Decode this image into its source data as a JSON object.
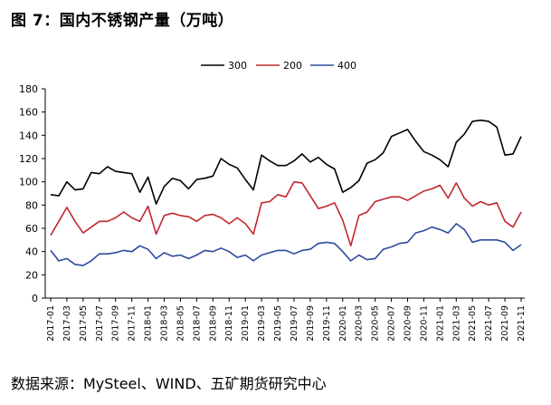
{
  "title": "图 7：国内不锈钢产量（万吨）",
  "source": "数据来源：MySteel、WIND、五矿期货研究中心",
  "chart_data": {
    "type": "line",
    "ylim": [
      0,
      180
    ],
    "yticks": [
      0,
      20,
      40,
      60,
      80,
      100,
      120,
      140,
      160,
      180
    ],
    "grid": false,
    "legend_position": "top",
    "x": [
      "2017-01",
      "2017-02",
      "2017-03",
      "2017-04",
      "2017-05",
      "2017-06",
      "2017-07",
      "2017-08",
      "2017-09",
      "2017-10",
      "2017-11",
      "2017-12",
      "2018-01",
      "2018-02",
      "2018-03",
      "2018-04",
      "2018-05",
      "2018-06",
      "2018-07",
      "2018-08",
      "2018-09",
      "2018-10",
      "2018-11",
      "2018-12",
      "2019-01",
      "2019-02",
      "2019-03",
      "2019-04",
      "2019-05",
      "2019-06",
      "2019-07",
      "2019-08",
      "2019-09",
      "2019-10",
      "2019-11",
      "2019-12",
      "2020-01",
      "2020-02",
      "2020-03",
      "2020-04",
      "2020-05",
      "2020-06",
      "2020-07",
      "2020-08",
      "2020-09",
      "2020-10",
      "2020-11",
      "2020-12",
      "2021-01",
      "2021-02",
      "2021-03",
      "2021-04",
      "2021-05",
      "2021-06",
      "2021-07",
      "2021-08",
      "2021-09",
      "2021-10",
      "2021-11"
    ],
    "xtick_labels": [
      "2017-01",
      "2017-03",
      "2017-05",
      "2017-07",
      "2017-09",
      "2017-11",
      "2018-01",
      "2018-03",
      "2018-05",
      "2018-07",
      "2018-09",
      "2018-11",
      "2019-01",
      "2019-03",
      "2019-05",
      "2019-07",
      "2019-09",
      "2019-11",
      "2020-01",
      "2020-03",
      "2020-05",
      "2020-07",
      "2020-09",
      "2020-11",
      "2021-01",
      "2021-03",
      "2021-05",
      "2021-07",
      "2021-09",
      "2021-11"
    ],
    "series": [
      {
        "name": "300",
        "color": "#000000",
        "values": [
          89,
          88,
          100,
          93,
          94,
          108,
          107,
          113,
          109,
          108,
          107,
          91,
          104,
          81,
          96,
          103,
          101,
          94,
          102,
          103,
          105,
          120,
          115,
          112,
          102,
          93,
          123,
          118,
          114,
          114,
          118,
          124,
          117,
          121,
          115,
          111,
          91,
          95,
          101,
          116,
          119,
          125,
          139,
          142,
          145,
          135,
          126,
          123,
          119,
          113,
          134,
          141,
          152,
          153,
          152,
          147,
          123,
          124,
          139
        ]
      },
      {
        "name": "200",
        "color": "#c0282e",
        "values": [
          54,
          66,
          78,
          66,
          56,
          61,
          66,
          66,
          69,
          74,
          69,
          66,
          79,
          55,
          71,
          73,
          71,
          70,
          66,
          71,
          72,
          69,
          64,
          69,
          64,
          55,
          82,
          83,
          89,
          87,
          100,
          99,
          88,
          77,
          79,
          82,
          67,
          45,
          71,
          74,
          83,
          85,
          87,
          87,
          84,
          88,
          92,
          94,
          97,
          86,
          99,
          86,
          79,
          83,
          80,
          82,
          66,
          61,
          74
        ]
      },
      {
        "name": "400",
        "color": "#2e4a9e",
        "values": [
          41,
          32,
          34,
          29,
          28,
          32,
          38,
          38,
          39,
          41,
          40,
          45,
          42,
          34,
          39,
          36,
          37,
          34,
          37,
          41,
          40,
          43,
          40,
          35,
          37,
          32,
          37,
          39,
          41,
          41,
          38,
          41,
          42,
          47,
          48,
          47,
          40,
          32,
          37,
          33,
          34,
          42,
          44,
          47,
          48,
          56,
          58,
          61,
          59,
          56,
          64,
          59,
          48,
          50,
          50,
          50,
          48,
          41,
          46
        ]
      }
    ]
  }
}
